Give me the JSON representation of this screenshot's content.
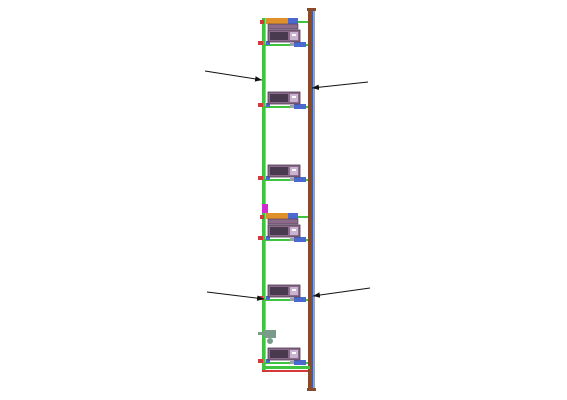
{
  "diagram": {
    "colors": {
      "background": "#ffffff",
      "frame_green": "#3ec43e",
      "frame_light": "#7de07d",
      "mast_brown": "#8a4a2a",
      "mast_blue": "#3a5fb0",
      "mast_gray": "#9aa0a8",
      "unit_body": "#8b6a8a",
      "unit_dark": "#4a3a50",
      "unit_panel": "#c8b4d0",
      "bracket_blue": "#4a6ad0",
      "bracket_orange": "#e0902a",
      "bracket_red": "#d03a3a",
      "accent_magenta": "#d02ad0",
      "fitting_gray": "#7a9a8a",
      "arrow": "#111111"
    },
    "units": [
      {
        "name": "unit-1",
        "has_top_bracket": true
      },
      {
        "name": "unit-2",
        "has_top_bracket": false
      },
      {
        "name": "unit-3",
        "has_top_bracket": false
      },
      {
        "name": "unit-4",
        "has_top_bracket": true
      },
      {
        "name": "unit-5",
        "has_top_bracket": false
      },
      {
        "name": "unit-6",
        "has_top_bracket": false
      }
    ],
    "callout_arrows": [
      {
        "name": "arrow-left-upper",
        "points_to": "green-frame"
      },
      {
        "name": "arrow-right-upper",
        "points_to": "mast"
      },
      {
        "name": "arrow-left-lower",
        "points_to": "green-frame-joint"
      },
      {
        "name": "arrow-right-lower",
        "points_to": "mast-joint"
      }
    ]
  }
}
